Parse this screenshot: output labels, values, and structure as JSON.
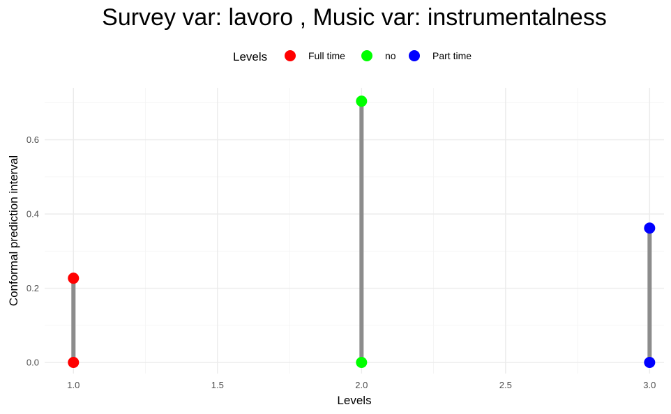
{
  "chart_data": {
    "type": "scatter",
    "title": "Survey var: lavoro , Music var: instrumentalness",
    "xlabel": "Levels",
    "ylabel": "Conformal prediction interval",
    "xlim": [
      0.9,
      3.05
    ],
    "ylim": [
      -0.03,
      0.74
    ],
    "x_ticks": [
      1.0,
      1.5,
      2.0,
      2.5,
      3.0
    ],
    "x_tick_labels": [
      "1.0",
      "1.5",
      "2.0",
      "2.5",
      "3.0"
    ],
    "y_ticks": [
      0.0,
      0.2,
      0.4,
      0.6
    ],
    "y_tick_labels": [
      "0.0",
      "0.2",
      "0.4",
      "0.6"
    ],
    "grid": true,
    "legend": {
      "title": "Levels",
      "position": "top",
      "entries": [
        {
          "label": "Full time",
          "color": "#ff0000"
        },
        {
          "label": "no",
          "color": "#00ff00"
        },
        {
          "label": "Part time",
          "color": "#0000ff"
        }
      ]
    },
    "series": [
      {
        "name": "Full time",
        "color": "#ff0000",
        "x": 1.0,
        "lower": 0.0,
        "upper": 0.227
      },
      {
        "name": "no",
        "color": "#00ff00",
        "x": 2.0,
        "lower": 0.0,
        "upper": 0.704
      },
      {
        "name": "Part time",
        "color": "#0000ff",
        "x": 3.0,
        "lower": 0.0,
        "upper": 0.362
      }
    ],
    "segment_color": "#8c8c8c"
  }
}
